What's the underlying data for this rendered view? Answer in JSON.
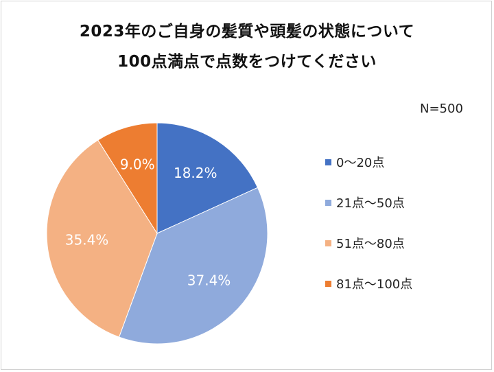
{
  "title_line1": "2023年のご自身の髪質や頭髪の状態について",
  "title_line2": "100点満点で点数をつけてください",
  "sample_note": "N=500",
  "chart_data": {
    "type": "pie",
    "title": "2023年のご自身の髪質や頭髪の状態について 100点満点で点数をつけてください",
    "categories": [
      "0～20点",
      "21点～50点",
      "51点～80点",
      "81点～100点"
    ],
    "values": [
      18.2,
      37.4,
      35.4,
      9.0
    ],
    "labels": [
      "18.2%",
      "37.4%",
      "35.4%",
      "9.0%"
    ],
    "colors": [
      "#4472C4",
      "#8FAADC",
      "#F4B183",
      "#ED7D31"
    ],
    "start_angle": "12 o'clock",
    "direction": "clockwise",
    "legend_position": "right",
    "label_color": "#ffffff"
  }
}
